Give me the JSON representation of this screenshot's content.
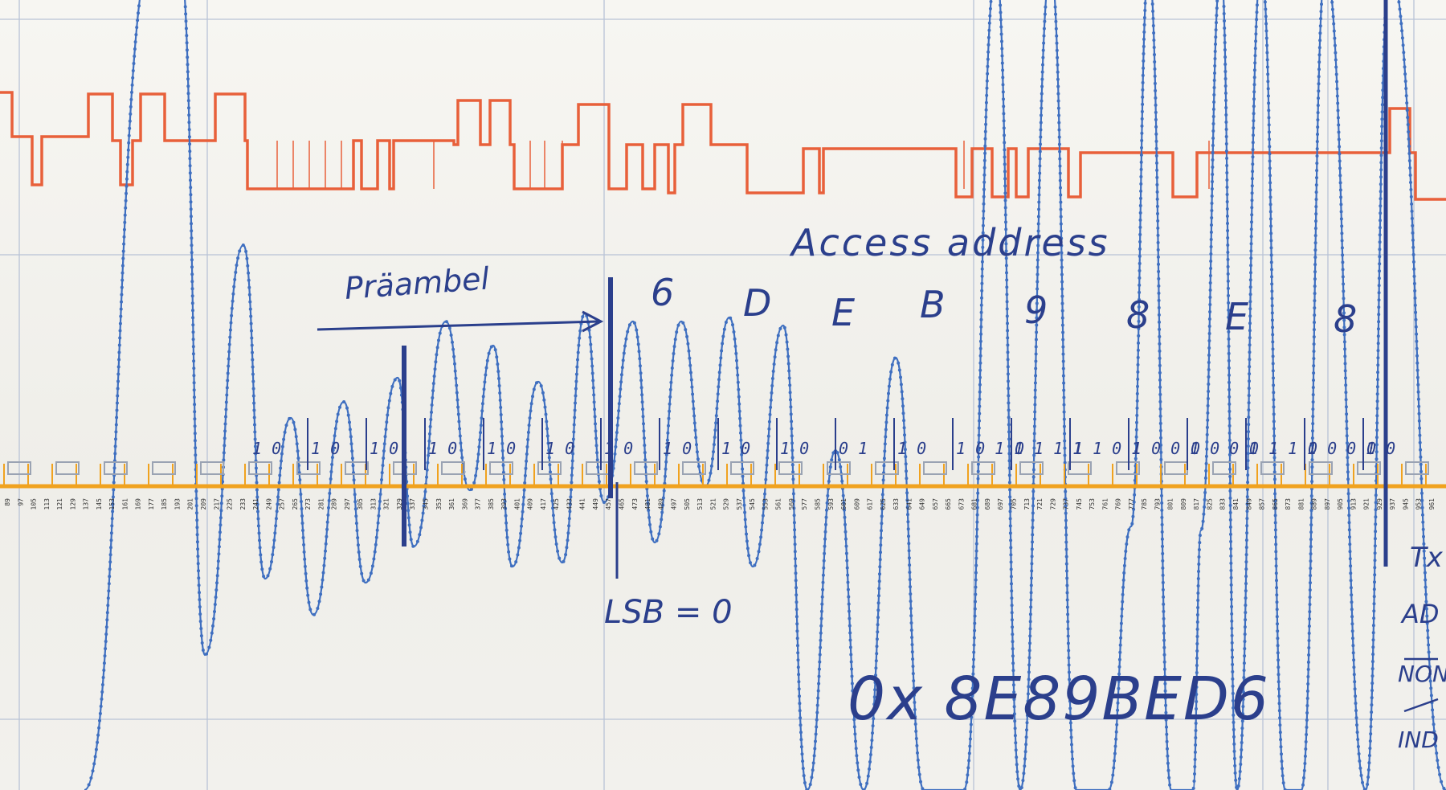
{
  "annotations": {
    "preamble_label": "Präambel",
    "access_address_label": "Access address",
    "nibbles": [
      "6",
      "D",
      "E",
      "B",
      "9",
      "8",
      "E",
      "8"
    ],
    "bit_groups": [
      "1 0",
      "1 0",
      "1 0",
      "1 0",
      "1 0",
      "1 0",
      "1 0",
      "1 0",
      "1 0",
      "1 0",
      "0 1",
      "1 0",
      "1 0 1 1",
      "0 1 1 1",
      "1 1 0 1",
      "1 0 0 1",
      "0 0 0 1",
      "0 1 1 1",
      "0 0 0 1",
      "0 0"
    ],
    "lsb_note": "LSB = 0",
    "address_value": "0x 8E89BED6",
    "right_margin_notes": [
      "Tx",
      "AD",
      "NON",
      "IND"
    ]
  },
  "sample_axis": {
    "tick_labels": [
      "89",
      "97",
      "105",
      "113",
      "121",
      "129",
      "137",
      "145",
      "153",
      "161",
      "169",
      "177",
      "185",
      "193",
      "201",
      "209",
      "217",
      "225",
      "233",
      "241",
      "249",
      "257",
      "265",
      "273",
      "281",
      "289",
      "297",
      "305",
      "313",
      "321",
      "329",
      "337",
      "345",
      "353",
      "361",
      "369",
      "377",
      "385",
      "393",
      "401",
      "409",
      "417",
      "425",
      "433",
      "441",
      "449",
      "457",
      "465",
      "473",
      "481",
      "489",
      "497",
      "505",
      "513",
      "521",
      "529",
      "537",
      "545",
      "553",
      "561",
      "569",
      "577",
      "585",
      "593",
      "601",
      "609",
      "617",
      "625",
      "633",
      "641",
      "649",
      "657",
      "665",
      "673",
      "681",
      "689",
      "697",
      "705",
      "713",
      "721",
      "729",
      "737",
      "745",
      "753",
      "761",
      "769",
      "777",
      "785",
      "793",
      "801",
      "809",
      "817",
      "825",
      "833",
      "841",
      "849",
      "857",
      "865",
      "873",
      "881",
      "889",
      "897",
      "905",
      "913",
      "921",
      "929",
      "937",
      "945",
      "953",
      "961"
    ]
  },
  "colors": {
    "paper": "#f4f3ef",
    "grid": "#b9c3d6",
    "ink_blue": "#2b3f8c",
    "signal_blue": "#3f6fc0",
    "digital_red": "#e8603a",
    "axis_orange": "#f0a21f",
    "clock_gray": "#9aa3b3"
  }
}
